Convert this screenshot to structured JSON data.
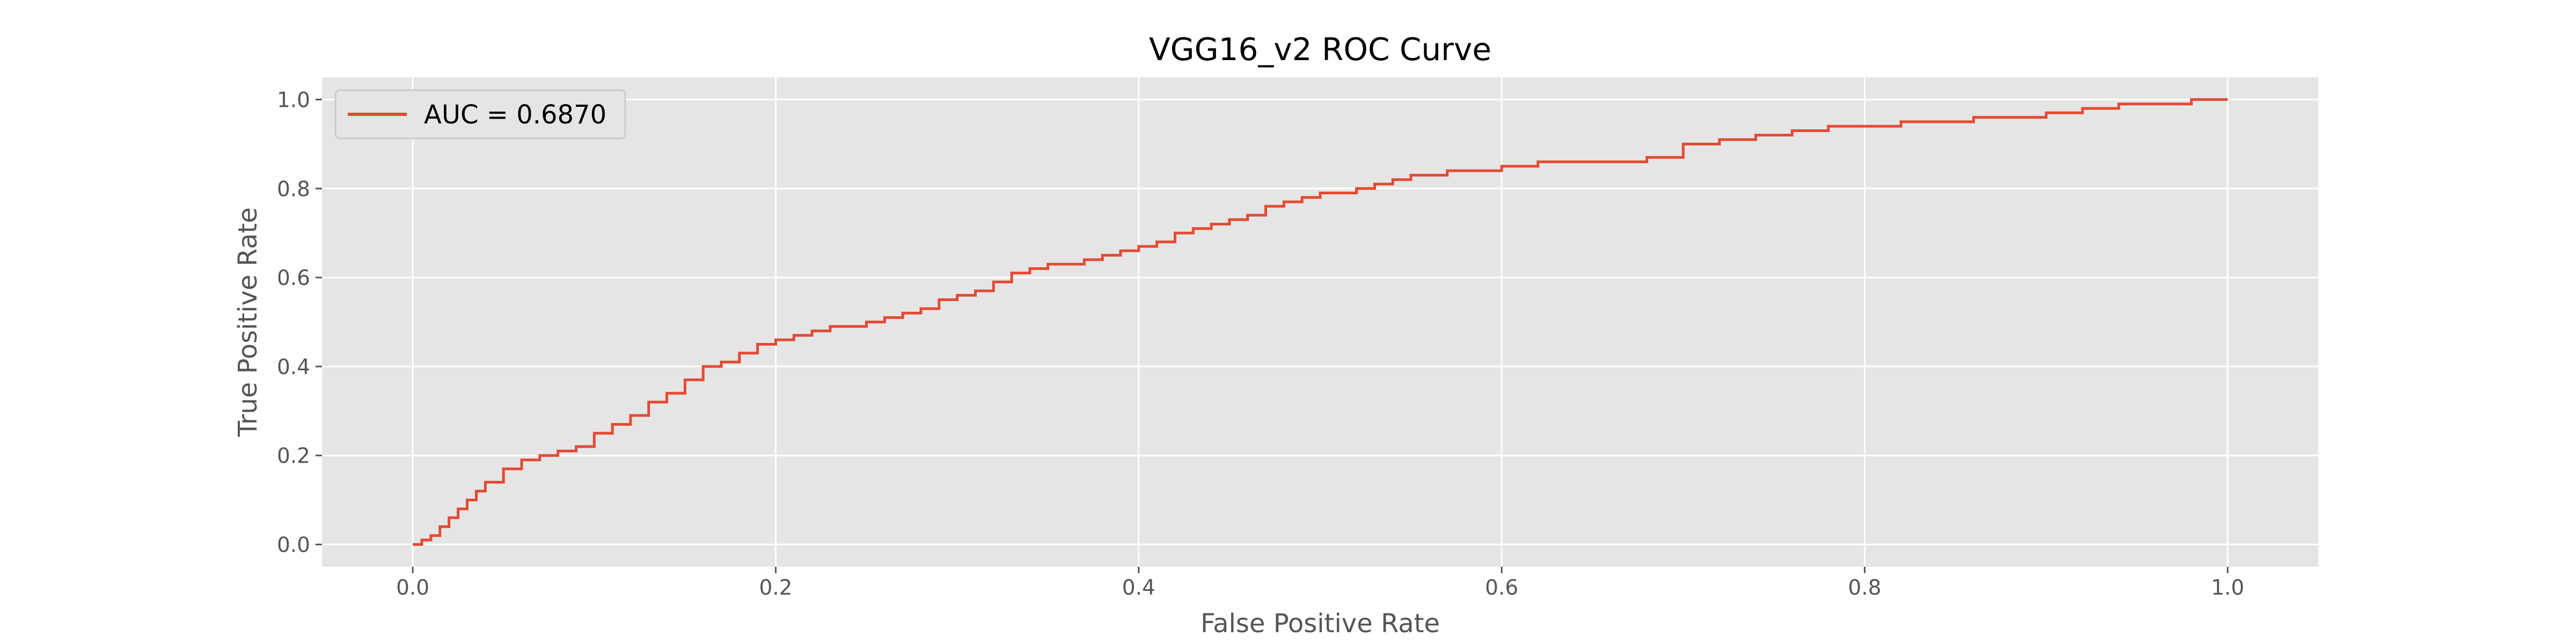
{
  "chart_data": {
    "type": "line",
    "title": "VGG16_v2 ROC Curve",
    "xlabel": "False Positive Rate",
    "ylabel": "True Positive Rate",
    "xlim": [
      -0.05,
      1.05
    ],
    "ylim": [
      -0.05,
      1.05
    ],
    "xticks": [
      "0.0",
      "0.2",
      "0.4",
      "0.6",
      "0.8",
      "1.0"
    ],
    "yticks": [
      "0.0",
      "0.2",
      "0.4",
      "0.6",
      "0.8",
      "1.0"
    ],
    "grid": true,
    "legend_position": "top-left",
    "colors": {
      "line": "#E24A33",
      "plot_bg": "#E5E5E5",
      "grid": "#FFFFFF",
      "page_bg": "#FFFFFF"
    },
    "series": [
      {
        "name": "AUC = 0.6870",
        "x": [
          0.0,
          0.005,
          0.01,
          0.015,
          0.02,
          0.025,
          0.03,
          0.035,
          0.04,
          0.05,
          0.06,
          0.07,
          0.08,
          0.09,
          0.1,
          0.11,
          0.12,
          0.13,
          0.14,
          0.15,
          0.16,
          0.17,
          0.18,
          0.19,
          0.2,
          0.21,
          0.22,
          0.23,
          0.24,
          0.25,
          0.26,
          0.27,
          0.28,
          0.29,
          0.3,
          0.31,
          0.32,
          0.33,
          0.34,
          0.35,
          0.36,
          0.37,
          0.38,
          0.39,
          0.4,
          0.41,
          0.42,
          0.43,
          0.44,
          0.45,
          0.46,
          0.47,
          0.48,
          0.49,
          0.5,
          0.51,
          0.52,
          0.53,
          0.54,
          0.55,
          0.56,
          0.57,
          0.58,
          0.6,
          0.62,
          0.64,
          0.66,
          0.68,
          0.7,
          0.72,
          0.74,
          0.76,
          0.78,
          0.8,
          0.82,
          0.84,
          0.86,
          0.88,
          0.9,
          0.92,
          0.94,
          0.96,
          0.98,
          1.0
        ],
        "y": [
          0.0,
          0.01,
          0.02,
          0.04,
          0.06,
          0.08,
          0.1,
          0.12,
          0.14,
          0.17,
          0.19,
          0.2,
          0.21,
          0.22,
          0.25,
          0.27,
          0.29,
          0.32,
          0.34,
          0.37,
          0.4,
          0.41,
          0.43,
          0.45,
          0.46,
          0.47,
          0.48,
          0.49,
          0.49,
          0.5,
          0.51,
          0.52,
          0.53,
          0.55,
          0.56,
          0.57,
          0.59,
          0.61,
          0.62,
          0.63,
          0.63,
          0.64,
          0.65,
          0.66,
          0.67,
          0.68,
          0.7,
          0.71,
          0.72,
          0.73,
          0.74,
          0.76,
          0.77,
          0.78,
          0.79,
          0.79,
          0.8,
          0.81,
          0.82,
          0.83,
          0.83,
          0.84,
          0.84,
          0.85,
          0.86,
          0.86,
          0.86,
          0.87,
          0.9,
          0.91,
          0.92,
          0.93,
          0.94,
          0.94,
          0.95,
          0.95,
          0.96,
          0.96,
          0.97,
          0.98,
          0.99,
          0.99,
          1.0,
          1.0
        ]
      }
    ]
  }
}
